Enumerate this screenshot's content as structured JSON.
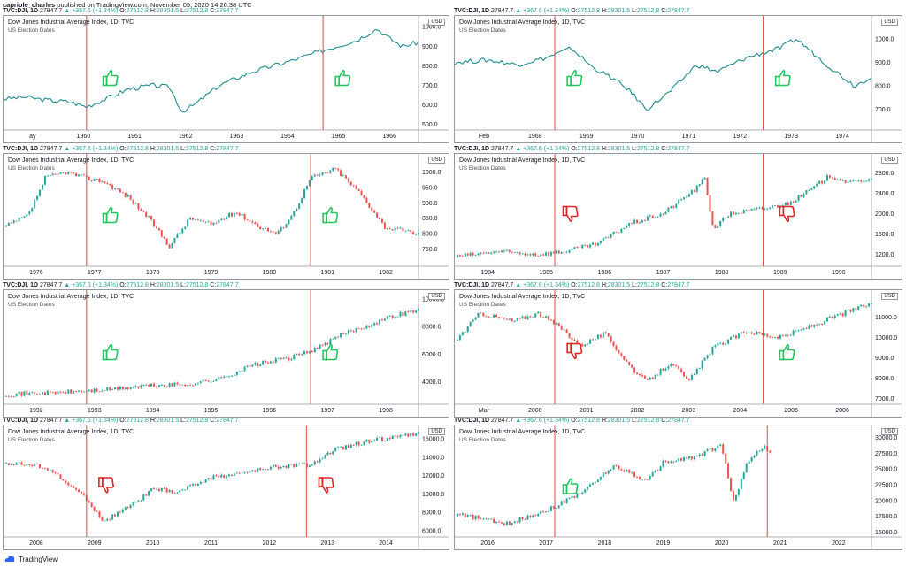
{
  "header": {
    "author": "capriole_charles",
    "published": "published on TradingView.com, November 05, 2020 14:26:38 UTC"
  },
  "ticker": {
    "symbol": "TVC:DJI, 1D",
    "last": "27847.7",
    "change": "+367.6 (+1.34%)",
    "o_label": "O:",
    "o": "27512.8",
    "h_label": "H:",
    "h": "28301.5",
    "l_label": "L:",
    "l": "27512.8",
    "c_label": "C:",
    "c": "27847.7"
  },
  "panel_title": "Dow Jones Industrial Average Index, 1D, TVC",
  "panel_subtitle": "US Election Dates",
  "currency": "USD",
  "footer": {
    "brand": "TradingView"
  },
  "colors": {
    "line": "#1e8c8f",
    "up": "#26a69a",
    "down": "#ef5350",
    "election": "#e04a4a",
    "thumb_up": "#22c55e",
    "thumb_down": "#dc2626"
  },
  "chart_data": [
    {
      "type": "line",
      "x_labels": [
        "ay",
        "1960",
        "1961",
        "1962",
        "1963",
        "1964",
        "1965",
        "1966"
      ],
      "y_ticks": [
        500,
        600,
        700,
        800,
        900,
        1000
      ],
      "ylim": [
        480,
        1010
      ],
      "path": [
        [
          0,
          630
        ],
        [
          0.05,
          640
        ],
        [
          0.1,
          625
        ],
        [
          0.16,
          615
        ],
        [
          0.2,
          590
        ],
        [
          0.24,
          625
        ],
        [
          0.3,
          680
        ],
        [
          0.36,
          700
        ],
        [
          0.4,
          690
        ],
        [
          0.43,
          565
        ],
        [
          0.46,
          600
        ],
        [
          0.52,
          700
        ],
        [
          0.6,
          770
        ],
        [
          0.7,
          830
        ],
        [
          0.78,
          885
        ],
        [
          0.85,
          930
        ],
        [
          0.9,
          990
        ],
        [
          0.93,
          940
        ],
        [
          0.96,
          900
        ],
        [
          1,
          920
        ]
      ],
      "elections": [
        0.2,
        0.77
      ],
      "marks": [
        {
          "x": 0.24,
          "v": "up"
        },
        {
          "x": 0.8,
          "v": "up"
        }
      ]
    },
    {
      "type": "line",
      "x_labels": [
        "Feb",
        "1968",
        "1969",
        "1970",
        "1971",
        "1972",
        "1973",
        "1974"
      ],
      "y_ticks": [
        700,
        800,
        900,
        1000
      ],
      "ylim": [
        620,
        1060
      ],
      "path": [
        [
          0,
          900
        ],
        [
          0.08,
          910
        ],
        [
          0.15,
          890
        ],
        [
          0.22,
          920
        ],
        [
          0.28,
          960
        ],
        [
          0.33,
          880
        ],
        [
          0.38,
          830
        ],
        [
          0.42,
          780
        ],
        [
          0.46,
          700
        ],
        [
          0.52,
          780
        ],
        [
          0.58,
          890
        ],
        [
          0.63,
          860
        ],
        [
          0.7,
          920
        ],
        [
          0.78,
          960
        ],
        [
          0.82,
          1000
        ],
        [
          0.86,
          940
        ],
        [
          0.9,
          880
        ],
        [
          0.93,
          840
        ],
        [
          0.96,
          800
        ],
        [
          1,
          840
        ]
      ],
      "elections": [
        0.24,
        0.74
      ],
      "marks": [
        {
          "x": 0.27,
          "v": "up"
        },
        {
          "x": 0.77,
          "v": "up"
        }
      ]
    },
    {
      "type": "candle",
      "x_labels": [
        "1976",
        "1977",
        "1978",
        "1979",
        "1980",
        "1981",
        "1982"
      ],
      "y_ticks": [
        750,
        800,
        850,
        900,
        950,
        1000
      ],
      "ylim": [
        700,
        1030
      ],
      "path": [
        [
          0,
          820
        ],
        [
          0.06,
          860
        ],
        [
          0.1,
          980
        ],
        [
          0.15,
          1000
        ],
        [
          0.2,
          980
        ],
        [
          0.24,
          970
        ],
        [
          0.3,
          920
        ],
        [
          0.35,
          850
        ],
        [
          0.4,
          760
        ],
        [
          0.45,
          850
        ],
        [
          0.5,
          830
        ],
        [
          0.56,
          870
        ],
        [
          0.62,
          820
        ],
        [
          0.66,
          800
        ],
        [
          0.7,
          870
        ],
        [
          0.74,
          980
        ],
        [
          0.8,
          1010
        ],
        [
          0.86,
          930
        ],
        [
          0.92,
          820
        ],
        [
          1,
          800
        ]
      ],
      "elections": [
        0.2,
        0.74
      ],
      "marks": [
        {
          "x": 0.24,
          "v": "up"
        },
        {
          "x": 0.77,
          "v": "up"
        }
      ]
    },
    {
      "type": "candle",
      "x_labels": [
        "1984",
        "1985",
        "1986",
        "1987",
        "1988",
        "1989",
        "1990"
      ],
      "y_ticks": [
        1200,
        1600,
        2000,
        2400,
        2800
      ],
      "ylim": [
        1000,
        3000
      ],
      "path": [
        [
          0,
          1150
        ],
        [
          0.1,
          1250
        ],
        [
          0.2,
          1200
        ],
        [
          0.26,
          1250
        ],
        [
          0.34,
          1400
        ],
        [
          0.42,
          1800
        ],
        [
          0.5,
          2000
        ],
        [
          0.58,
          2500
        ],
        [
          0.6,
          2700
        ],
        [
          0.62,
          1700
        ],
        [
          0.66,
          2000
        ],
        [
          0.74,
          2100
        ],
        [
          0.8,
          2200
        ],
        [
          0.86,
          2500
        ],
        [
          0.9,
          2750
        ],
        [
          0.95,
          2600
        ],
        [
          1,
          2700
        ]
      ],
      "elections": [
        0.24,
        0.74
      ],
      "marks": [
        {
          "x": 0.26,
          "v": "down"
        },
        {
          "x": 0.78,
          "v": "down"
        }
      ]
    },
    {
      "type": "candle",
      "x_labels": [
        "1992",
        "1993",
        "1994",
        "1995",
        "1996",
        "1997",
        "1998"
      ],
      "y_ticks": [
        4000,
        6000,
        8000,
        10000
      ],
      "ylim": [
        2500,
        10000
      ],
      "path": [
        [
          0,
          3100
        ],
        [
          0.12,
          3200
        ],
        [
          0.24,
          3400
        ],
        [
          0.34,
          3700
        ],
        [
          0.44,
          3800
        ],
        [
          0.52,
          4200
        ],
        [
          0.6,
          5200
        ],
        [
          0.7,
          5800
        ],
        [
          0.76,
          6500
        ],
        [
          0.82,
          7500
        ],
        [
          0.88,
          8100
        ],
        [
          0.94,
          8800
        ],
        [
          1,
          9200
        ]
      ],
      "elections": [
        0.2,
        0.74
      ],
      "marks": [
        {
          "x": 0.24,
          "v": "up"
        },
        {
          "x": 0.77,
          "v": "up"
        }
      ]
    },
    {
      "type": "candle",
      "x_labels": [
        "Mar",
        "2000",
        "2001",
        "2002",
        "2003",
        "2004",
        "2005",
        "2006"
      ],
      "y_ticks": [
        7000,
        8000,
        9000,
        10000,
        11000
      ],
      "ylim": [
        6800,
        11900
      ],
      "path": [
        [
          0,
          9800
        ],
        [
          0.06,
          11200
        ],
        [
          0.14,
          10800
        ],
        [
          0.2,
          11200
        ],
        [
          0.26,
          10400
        ],
        [
          0.3,
          9600
        ],
        [
          0.36,
          10200
        ],
        [
          0.42,
          8600
        ],
        [
          0.46,
          7800
        ],
        [
          0.52,
          8800
        ],
        [
          0.56,
          7800
        ],
        [
          0.62,
          9500
        ],
        [
          0.7,
          10300
        ],
        [
          0.78,
          10000
        ],
        [
          0.86,
          10600
        ],
        [
          0.92,
          11100
        ],
        [
          1,
          11700
        ]
      ],
      "elections": [
        0.24,
        0.74
      ],
      "marks": [
        {
          "x": 0.27,
          "v": "down"
        },
        {
          "x": 0.78,
          "v": "up"
        }
      ]
    },
    {
      "type": "candle",
      "x_labels": [
        "2008",
        "2009",
        "2010",
        "2011",
        "2012",
        "2013",
        "2014"
      ],
      "y_ticks": [
        6000,
        8000,
        10000,
        12000,
        14000,
        16000
      ],
      "ylim": [
        5500,
        16500
      ],
      "path": [
        [
          0,
          13400
        ],
        [
          0.1,
          13000
        ],
        [
          0.2,
          9500
        ],
        [
          0.24,
          7000
        ],
        [
          0.3,
          8500
        ],
        [
          0.36,
          10500
        ],
        [
          0.42,
          10200
        ],
        [
          0.5,
          11800
        ],
        [
          0.58,
          12300
        ],
        [
          0.66,
          13000
        ],
        [
          0.74,
          13200
        ],
        [
          0.8,
          14800
        ],
        [
          0.88,
          15800
        ],
        [
          0.94,
          16200
        ],
        [
          1,
          16500
        ]
      ],
      "elections": [
        0.2,
        0.73
      ],
      "marks": [
        {
          "x": 0.23,
          "v": "down"
        },
        {
          "x": 0.76,
          "v": "down"
        }
      ]
    },
    {
      "type": "candle",
      "x_labels": [
        "2016",
        "2017",
        "2018",
        "2019",
        "2020",
        "2021",
        "2022"
      ],
      "y_ticks": [
        15000,
        17500,
        20000,
        22500,
        25000,
        27500,
        30000
      ],
      "ylim": [
        14500,
        30500
      ],
      "path": [
        [
          0,
          17800
        ],
        [
          0.06,
          17200
        ],
        [
          0.12,
          16200
        ],
        [
          0.2,
          18000
        ],
        [
          0.24,
          19000
        ],
        [
          0.32,
          22000
        ],
        [
          0.38,
          25500
        ],
        [
          0.42,
          24500
        ],
        [
          0.46,
          23000
        ],
        [
          0.5,
          26000
        ],
        [
          0.58,
          27000
        ],
        [
          0.64,
          28800
        ],
        [
          0.67,
          19500
        ],
        [
          0.7,
          26000
        ],
        [
          0.74,
          28500
        ],
        [
          0.76,
          27800
        ]
      ],
      "elections": [
        0.24,
        0.75
      ],
      "marks": [
        {
          "x": 0.26,
          "v": "up"
        }
      ]
    }
  ]
}
